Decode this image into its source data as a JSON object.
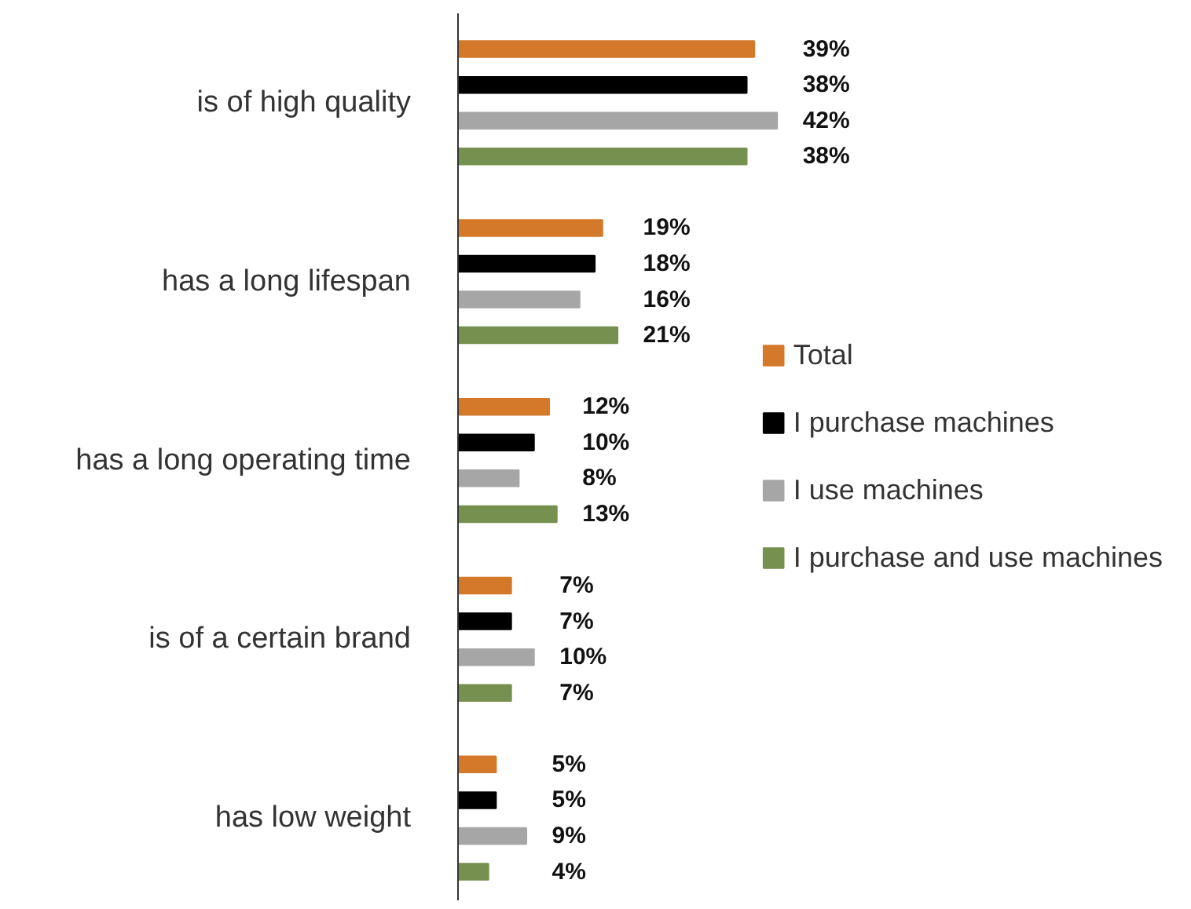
{
  "chart_data": {
    "type": "bar",
    "orientation": "horizontal",
    "data_labels": true,
    "legend": "right",
    "categories": [
      "is of high quality",
      "has a long lifespan",
      "has a long operating time",
      "is of a certain brand",
      "has low weight"
    ],
    "series": [
      {
        "name": "Total",
        "color": "#d4792a",
        "values": [
          39,
          19,
          12,
          7,
          5
        ],
        "value_labels": [
          "39%",
          "19%",
          "12%",
          "7%",
          "5%"
        ]
      },
      {
        "name": "I purchase machines",
        "color": "#000000",
        "values": [
          38,
          18,
          10,
          7,
          5
        ],
        "value_labels": [
          "38%",
          "18%",
          "10%",
          "7%",
          "5%"
        ]
      },
      {
        "name": "I use machines",
        "color": "#a6a6a6",
        "values": [
          42,
          16,
          8,
          10,
          9
        ],
        "value_labels": [
          "42%",
          "16%",
          "8%",
          "10%",
          "9%"
        ]
      },
      {
        "name": "I purchase and use machines",
        "color": "#76904f",
        "values": [
          38,
          21,
          13,
          7,
          4
        ],
        "value_labels": [
          "38%",
          "21%",
          "13%",
          "7%",
          "4%"
        ]
      }
    ]
  }
}
